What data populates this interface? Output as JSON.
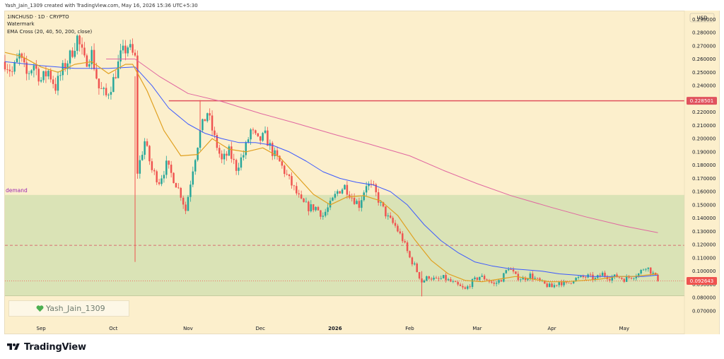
{
  "header": {
    "credit": "Yash_Jain_1309 created with TradingView.com, May 16, 2026 15:36 UTC+5:30"
  },
  "legend": {
    "symbol_line": "1INCHUSD · 1D · CRYPTO",
    "watermark_line": "Watermark",
    "indicator_line": "EMA Cross (20, 40, 50, 200, close)"
  },
  "watermark_label": "Yash_Jain_1309",
  "brand": {
    "name": "TradingView"
  },
  "colors": {
    "background": "#fcefcc",
    "up": "#26a69a",
    "down": "#ef5350",
    "zone": "#d3e0b1",
    "ema_20": "#e0a020",
    "ema_50": "#3d5afe",
    "ema_200": "#e066a0",
    "resistance": "#e0525e"
  },
  "chart_data": {
    "type": "candlestick",
    "title": "",
    "currency_label": "USD",
    "y_ticks": [
      "0.290000",
      "0.280000",
      "0.270000",
      "0.260000",
      "0.250000",
      "0.240000",
      "0.230000",
      "0.220000",
      "0.210000",
      "0.200000",
      "0.190000",
      "0.180000",
      "0.170000",
      "0.160000",
      "0.150000",
      "0.140000",
      "0.130000",
      "0.120000",
      "0.110000",
      "0.100000",
      "0.090000",
      "0.080000",
      "0.070000"
    ],
    "ylim": [
      0.062,
      0.296
    ],
    "x_labels": [
      {
        "label": "Sep",
        "date": "2025-09-01"
      },
      {
        "label": "Oct",
        "date": "2025-10-01"
      },
      {
        "label": "Nov",
        "date": "2025-11-01"
      },
      {
        "label": "Dec",
        "date": "2025-12-01"
      },
      {
        "label": "2026",
        "date": "2026-01-01"
      },
      {
        "label": "Feb",
        "date": "2026-02-01"
      },
      {
        "label": "Mar",
        "date": "2026-03-01"
      },
      {
        "label": "Apr",
        "date": "2026-04-01"
      },
      {
        "label": "May",
        "date": "2026-05-01"
      }
    ],
    "x_range": [
      "2025-08-17",
      "2026-05-26"
    ],
    "zones": [
      {
        "name": "demand",
        "from": 0.0815,
        "to": 0.1575
      }
    ],
    "horizontal_lines": [
      {
        "name": "resistance",
        "value": 0.228501,
        "label": "0.228501",
        "start": "2025-10-24",
        "style": "solid"
      },
      {
        "name": "dashed",
        "value": 0.1195,
        "start": "2025-08-17",
        "style": "dashed"
      },
      {
        "name": "last-price",
        "value": 0.092643,
        "label": "0.092643",
        "style": "dotted"
      }
    ],
    "close_path": [
      [
        "2025-08-17",
        0.258
      ],
      [
        "2025-08-20",
        0.25
      ],
      [
        "2025-08-23",
        0.262
      ],
      [
        "2025-08-26",
        0.248
      ],
      [
        "2025-08-29",
        0.256
      ],
      [
        "2025-09-01",
        0.244
      ],
      [
        "2025-09-04",
        0.251
      ],
      [
        "2025-09-07",
        0.239
      ],
      [
        "2025-09-10",
        0.252
      ],
      [
        "2025-09-13",
        0.262
      ],
      [
        "2025-09-16",
        0.276
      ],
      [
        "2025-09-19",
        0.258
      ],
      [
        "2025-09-22",
        0.264
      ],
      [
        "2025-09-25",
        0.238
      ],
      [
        "2025-09-28",
        0.232
      ],
      [
        "2025-10-01",
        0.244
      ],
      [
        "2025-10-04",
        0.262
      ],
      [
        "2025-10-07",
        0.27
      ],
      [
        "2025-10-10",
        0.26
      ],
      [
        "2025-10-11",
        0.175
      ],
      [
        "2025-10-14",
        0.198
      ],
      [
        "2025-10-17",
        0.176
      ],
      [
        "2025-10-20",
        0.168
      ],
      [
        "2025-10-23",
        0.18
      ],
      [
        "2025-10-26",
        0.17
      ],
      [
        "2025-10-29",
        0.158
      ],
      [
        "2025-10-31",
        0.146
      ],
      [
        "2025-11-03",
        0.178
      ],
      [
        "2025-11-06",
        0.205
      ],
      [
        "2025-11-09",
        0.22
      ],
      [
        "2025-11-12",
        0.2
      ],
      [
        "2025-11-15",
        0.183
      ],
      [
        "2025-11-18",
        0.19
      ],
      [
        "2025-11-21",
        0.178
      ],
      [
        "2025-11-24",
        0.188
      ],
      [
        "2025-11-27",
        0.206
      ],
      [
        "2025-11-30",
        0.198
      ],
      [
        "2025-12-03",
        0.202
      ],
      [
        "2025-12-06",
        0.19
      ],
      [
        "2025-12-09",
        0.182
      ],
      [
        "2025-12-12",
        0.172
      ],
      [
        "2025-12-15",
        0.162
      ],
      [
        "2025-12-18",
        0.152
      ],
      [
        "2025-12-21",
        0.148
      ],
      [
        "2025-12-24",
        0.148
      ],
      [
        "2025-12-27",
        0.142
      ],
      [
        "2025-12-30",
        0.15
      ],
      [
        "2026-01-02",
        0.16
      ],
      [
        "2026-01-05",
        0.164
      ],
      [
        "2026-01-08",
        0.156
      ],
      [
        "2026-01-11",
        0.15
      ],
      [
        "2026-01-14",
        0.166
      ],
      [
        "2026-01-17",
        0.162
      ],
      [
        "2026-01-20",
        0.15
      ],
      [
        "2026-01-23",
        0.14
      ],
      [
        "2026-01-26",
        0.134
      ],
      [
        "2026-01-29",
        0.124
      ],
      [
        "2026-02-01",
        0.11
      ],
      [
        "2026-02-03",
        0.104
      ],
      [
        "2026-02-06",
        0.092
      ],
      [
        "2026-02-09",
        0.096
      ],
      [
        "2026-02-12",
        0.093
      ],
      [
        "2026-02-15",
        0.095
      ],
      [
        "2026-02-18",
        0.092
      ],
      [
        "2026-02-21",
        0.089
      ],
      [
        "2026-02-24",
        0.086
      ],
      [
        "2026-02-27",
        0.092
      ],
      [
        "2026-03-02",
        0.096
      ],
      [
        "2026-03-05",
        0.094
      ],
      [
        "2026-03-08",
        0.09
      ],
      [
        "2026-03-11",
        0.094
      ],
      [
        "2026-03-14",
        0.103
      ],
      [
        "2026-03-17",
        0.096
      ],
      [
        "2026-03-20",
        0.094
      ],
      [
        "2026-03-23",
        0.097
      ],
      [
        "2026-03-26",
        0.093
      ],
      [
        "2026-03-29",
        0.09
      ],
      [
        "2026-04-01",
        0.088
      ],
      [
        "2026-04-04",
        0.092
      ],
      [
        "2026-04-07",
        0.09
      ],
      [
        "2026-04-10",
        0.094
      ],
      [
        "2026-04-13",
        0.095
      ],
      [
        "2026-04-16",
        0.096
      ],
      [
        "2026-04-19",
        0.094
      ],
      [
        "2026-04-22",
        0.098
      ],
      [
        "2026-04-25",
        0.095
      ],
      [
        "2026-04-28",
        0.096
      ],
      [
        "2026-05-01",
        0.094
      ],
      [
        "2026-05-04",
        0.096
      ],
      [
        "2026-05-07",
        0.098
      ],
      [
        "2026-05-10",
        0.104
      ],
      [
        "2026-05-13",
        0.098
      ],
      [
        "2026-05-15",
        0.092643
      ]
    ],
    "ema_20": [
      [
        "2025-08-17",
        0.265
      ],
      [
        "2025-08-24",
        0.262
      ],
      [
        "2025-09-01",
        0.254
      ],
      [
        "2025-09-08",
        0.25
      ],
      [
        "2025-09-15",
        0.256
      ],
      [
        "2025-09-22",
        0.258
      ],
      [
        "2025-09-29",
        0.249
      ],
      [
        "2025-10-06",
        0.256
      ],
      [
        "2025-10-09",
        0.256
      ],
      [
        "2025-10-15",
        0.236
      ],
      [
        "2025-10-22",
        0.206
      ],
      [
        "2025-10-29",
        0.187
      ],
      [
        "2025-11-05",
        0.188
      ],
      [
        "2025-11-11",
        0.2
      ],
      [
        "2025-11-18",
        0.192
      ],
      [
        "2025-11-25",
        0.19
      ],
      [
        "2025-12-02",
        0.193
      ],
      [
        "2025-12-09",
        0.186
      ],
      [
        "2025-12-16",
        0.172
      ],
      [
        "2025-12-23",
        0.158
      ],
      [
        "2025-12-30",
        0.15
      ],
      [
        "2026-01-06",
        0.156
      ],
      [
        "2026-01-13",
        0.157
      ],
      [
        "2026-01-20",
        0.153
      ],
      [
        "2026-01-27",
        0.142
      ],
      [
        "2026-02-03",
        0.124
      ],
      [
        "2026-02-10",
        0.108
      ],
      [
        "2026-02-17",
        0.098
      ],
      [
        "2026-02-24",
        0.093
      ],
      [
        "2026-03-03",
        0.092
      ],
      [
        "2026-03-10",
        0.094
      ],
      [
        "2026-03-17",
        0.096
      ],
      [
        "2026-03-24",
        0.094
      ],
      [
        "2026-03-31",
        0.092
      ],
      [
        "2026-04-07",
        0.092
      ],
      [
        "2026-04-14",
        0.093
      ],
      [
        "2026-04-21",
        0.094
      ],
      [
        "2026-04-28",
        0.096
      ],
      [
        "2026-05-05",
        0.096
      ],
      [
        "2026-05-15",
        0.098
      ]
    ],
    "ema_50": [
      [
        "2025-08-17",
        0.258
      ],
      [
        "2025-09-01",
        0.255
      ],
      [
        "2025-09-15",
        0.253
      ],
      [
        "2025-09-29",
        0.253
      ],
      [
        "2025-10-10",
        0.254
      ],
      [
        "2025-10-17",
        0.24
      ],
      [
        "2025-10-24",
        0.223
      ],
      [
        "2025-11-01",
        0.211
      ],
      [
        "2025-11-08",
        0.204
      ],
      [
        "2025-11-15",
        0.2
      ],
      [
        "2025-11-22",
        0.197
      ],
      [
        "2025-11-29",
        0.197
      ],
      [
        "2025-12-06",
        0.195
      ],
      [
        "2025-12-13",
        0.19
      ],
      [
        "2025-12-20",
        0.183
      ],
      [
        "2025-12-27",
        0.175
      ],
      [
        "2026-01-03",
        0.17
      ],
      [
        "2026-01-10",
        0.167
      ],
      [
        "2026-01-17",
        0.165
      ],
      [
        "2026-01-24",
        0.16
      ],
      [
        "2026-01-31",
        0.15
      ],
      [
        "2026-02-07",
        0.135
      ],
      [
        "2026-02-14",
        0.123
      ],
      [
        "2026-02-21",
        0.114
      ],
      [
        "2026-02-28",
        0.107
      ],
      [
        "2026-03-07",
        0.104
      ],
      [
        "2026-03-14",
        0.102
      ],
      [
        "2026-03-21",
        0.101
      ],
      [
        "2026-03-28",
        0.1
      ],
      [
        "2026-04-04",
        0.098
      ],
      [
        "2026-04-11",
        0.097
      ],
      [
        "2026-04-18",
        0.096
      ],
      [
        "2026-04-25",
        0.096
      ],
      [
        "2026-05-02",
        0.096
      ],
      [
        "2026-05-09",
        0.096
      ],
      [
        "2026-05-15",
        0.097
      ]
    ],
    "ema_200": [
      [
        "2025-09-28",
        0.26
      ],
      [
        "2025-10-10",
        0.26
      ],
      [
        "2025-10-20",
        0.247
      ],
      [
        "2025-11-01",
        0.234
      ],
      [
        "2025-11-15",
        0.228
      ],
      [
        "2025-12-01",
        0.219
      ],
      [
        "2025-12-15",
        0.212
      ],
      [
        "2026-01-01",
        0.203
      ],
      [
        "2026-01-15",
        0.196
      ],
      [
        "2026-02-01",
        0.187
      ],
      [
        "2026-02-15",
        0.176
      ],
      [
        "2026-03-01",
        0.166
      ],
      [
        "2026-03-15",
        0.157
      ],
      [
        "2026-04-01",
        0.148
      ],
      [
        "2026-04-15",
        0.141
      ],
      [
        "2026-05-01",
        0.134
      ],
      [
        "2026-05-15",
        0.129
      ]
    ]
  }
}
